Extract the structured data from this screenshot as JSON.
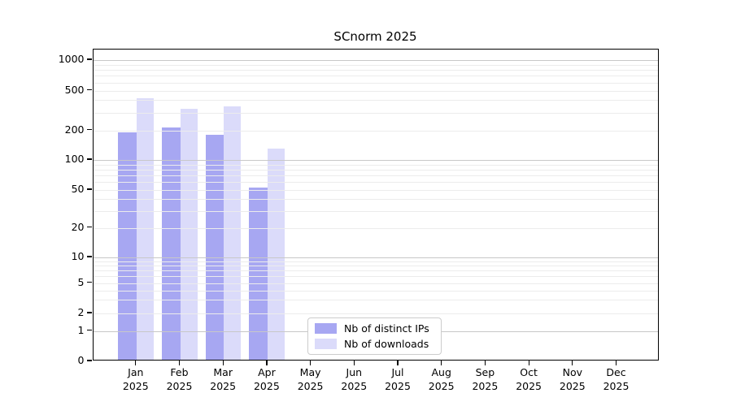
{
  "title": "SCnorm 2025",
  "year": "2025",
  "months": [
    "Jan",
    "Feb",
    "Mar",
    "Apr",
    "May",
    "Jun",
    "Jul",
    "Aug",
    "Sep",
    "Oct",
    "Nov",
    "Dec"
  ],
  "chart_data": {
    "type": "bar",
    "title": "SCnorm 2025",
    "categories": [
      "Jan 2025",
      "Feb 2025",
      "Mar 2025",
      "Apr 2025",
      "May 2025",
      "Jun 2025",
      "Jul 2025",
      "Aug 2025",
      "Sep 2025",
      "Oct 2025",
      "Nov 2025",
      "Dec 2025"
    ],
    "series": [
      {
        "name": "Nb of distinct IPs",
        "color": "#a7a7f2",
        "values": [
          190,
          215,
          180,
          53,
          null,
          null,
          null,
          null,
          null,
          null,
          null,
          null
        ]
      },
      {
        "name": "Nb of downloads",
        "color": "#dbdbfa",
        "values": [
          420,
          330,
          350,
          130,
          null,
          null,
          null,
          null,
          null,
          null,
          null,
          null
        ]
      }
    ],
    "yscale": "log",
    "yticks": [
      0,
      1,
      2,
      5,
      10,
      20,
      50,
      100,
      200,
      500,
      1000
    ],
    "ylim": [
      0,
      1200
    ],
    "grid": "horizontal, major and minor log lines",
    "legend_position": "lower center (inside axes)"
  },
  "legend": {
    "items": [
      {
        "label": "Nb of distinct IPs",
        "color": "#a7a7f2"
      },
      {
        "label": "Nb of downloads",
        "color": "#dbdbfa"
      }
    ]
  },
  "colors": {
    "background": "#ffffff",
    "bar_distinct_ips": "#a7a7f2",
    "bar_downloads": "#dbdbfa",
    "grid_major": "#c8c8c8",
    "grid_minor": "#ececec",
    "axis": "#000000",
    "legend_border": "#cccccc",
    "text": "#000000"
  }
}
